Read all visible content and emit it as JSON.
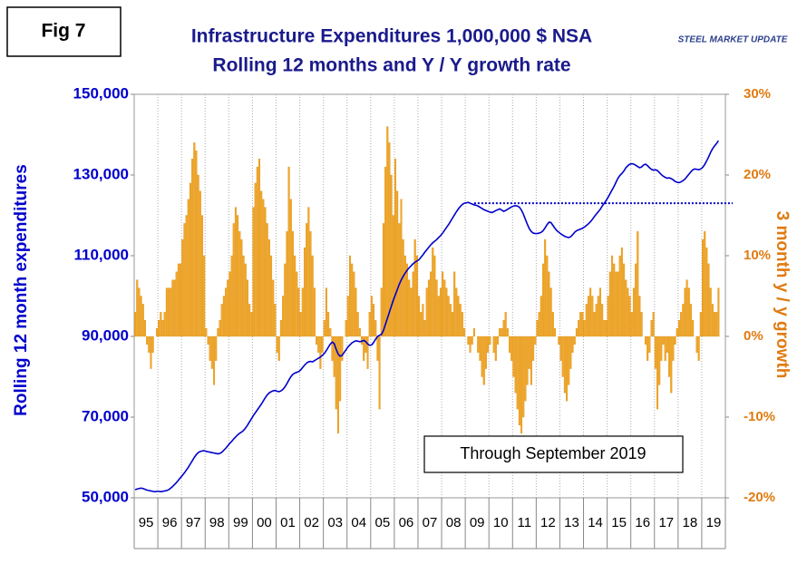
{
  "chart_data": {
    "type": "combo",
    "figure_label": "Fig 7",
    "title": "Infrastructure Expenditures 1,000,000 $ NSA",
    "subtitle": "Rolling 12 months and Y / Y growth rate",
    "logo": "STEEL MARKET UPDATE",
    "annotation": "Through September 2019",
    "y_label": "Rolling 12 month expenditures",
    "y2_label": "3 month y / y growth",
    "ylim": [
      50000,
      150000
    ],
    "yticks": [
      {
        "value": 50000,
        "label": "50,000"
      },
      {
        "value": 70000,
        "label": "70,000"
      },
      {
        "value": 90000,
        "label": "90,000"
      },
      {
        "value": 110000,
        "label": "110,000"
      },
      {
        "value": 130000,
        "label": "130,000"
      },
      {
        "value": 150000,
        "label": "150,000"
      }
    ],
    "y2lim": [
      -20,
      30
    ],
    "y2ticks": [
      {
        "value": -20,
        "label": "-20%"
      },
      {
        "value": -10,
        "label": "-10%"
      },
      {
        "value": 0,
        "label": "0%"
      },
      {
        "value": 10,
        "label": "10%"
      },
      {
        "value": 20,
        "label": "20%"
      },
      {
        "value": 30,
        "label": "30%"
      }
    ],
    "reference_line": {
      "value": 123000,
      "from_index": 172,
      "color": "#0000cc"
    },
    "categories": [
      null,
      null,
      null,
      null,
      null,
      "95",
      null,
      null,
      null,
      null,
      null,
      null,
      null,
      null,
      null,
      null,
      null,
      "96",
      null,
      null,
      null,
      null,
      null,
      null,
      null,
      null,
      null,
      null,
      null,
      "97",
      null,
      null,
      null,
      null,
      null,
      null,
      null,
      null,
      null,
      null,
      null,
      "98",
      null,
      null,
      null,
      null,
      null,
      null,
      null,
      null,
      null,
      null,
      null,
      "99",
      null,
      null,
      null,
      null,
      null,
      null,
      null,
      null,
      null,
      null,
      null,
      "00",
      null,
      null,
      null,
      null,
      null,
      null,
      null,
      null,
      null,
      null,
      null,
      "01",
      null,
      null,
      null,
      null,
      null,
      null,
      null,
      null,
      null,
      null,
      null,
      "02",
      null,
      null,
      null,
      null,
      null,
      null,
      null,
      null,
      null,
      null,
      null,
      "03",
      null,
      null,
      null,
      null,
      null,
      null,
      null,
      null,
      null,
      null,
      null,
      "04",
      null,
      null,
      null,
      null,
      null,
      null,
      null,
      null,
      null,
      null,
      null,
      "05",
      null,
      null,
      null,
      null,
      null,
      null,
      null,
      null,
      null,
      null,
      null,
      "06",
      null,
      null,
      null,
      null,
      null,
      null,
      null,
      null,
      null,
      null,
      null,
      "07",
      null,
      null,
      null,
      null,
      null,
      null,
      null,
      null,
      null,
      null,
      null,
      "08",
      null,
      null,
      null,
      null,
      null,
      null,
      null,
      null,
      null,
      null,
      null,
      "09",
      null,
      null,
      null,
      null,
      null,
      null,
      null,
      null,
      null,
      null,
      null,
      "10",
      null,
      null,
      null,
      null,
      null,
      null,
      null,
      null,
      null,
      null,
      null,
      "11",
      null,
      null,
      null,
      null,
      null,
      null,
      null,
      null,
      null,
      null,
      null,
      "12",
      null,
      null,
      null,
      null,
      null,
      null,
      null,
      null,
      null,
      null,
      null,
      "13",
      null,
      null,
      null,
      null,
      null,
      null,
      null,
      null,
      null,
      null,
      null,
      "14",
      null,
      null,
      null,
      null,
      null,
      null,
      null,
      null,
      null,
      null,
      null,
      "15",
      null,
      null,
      null,
      null,
      null,
      null,
      null,
      null,
      null,
      null,
      null,
      "16",
      null,
      null,
      null,
      null,
      null,
      null,
      null,
      null,
      null,
      null,
      null,
      "17",
      null,
      null,
      null,
      null,
      null,
      null,
      null,
      null,
      null,
      null,
      null,
      "18",
      null,
      null,
      null,
      null,
      null,
      null,
      null,
      null,
      null,
      null,
      null,
      "19",
      null,
      null,
      null
    ],
    "series": [
      {
        "type": "bar",
        "axis": "y2",
        "color": "#f5a623",
        "values": [
          3,
          7,
          6,
          5,
          4,
          2,
          -1,
          -2,
          -4,
          -2,
          0,
          1,
          2,
          3,
          2,
          3,
          6,
          6,
          6,
          7,
          7,
          8,
          9,
          9,
          12,
          14,
          15,
          17,
          19,
          22,
          24,
          23,
          20,
          18,
          15,
          10,
          1,
          -1,
          -3,
          -4,
          -6,
          -3,
          1,
          2,
          4,
          5,
          6,
          7,
          8,
          10,
          14,
          16,
          15,
          13,
          12,
          10,
          9,
          7,
          4,
          3,
          16,
          19,
          21,
          22,
          18,
          17,
          16,
          14,
          12,
          10,
          7,
          4,
          -2,
          -3,
          2,
          5,
          9,
          13,
          21,
          17,
          13,
          10,
          8,
          6,
          3,
          6,
          11,
          14,
          16,
          13,
          10,
          6,
          -1,
          -2,
          -4,
          -2,
          2,
          6,
          3,
          1,
          -3,
          -5,
          -9,
          -12,
          -8,
          -3,
          0,
          2,
          5,
          10,
          9,
          8,
          6,
          3,
          1,
          -1,
          -3,
          -2,
          -4,
          3,
          5,
          4,
          2,
          -3,
          -9,
          6,
          14,
          21,
          26,
          24,
          20,
          15,
          22,
          18,
          14,
          17,
          12,
          10,
          9,
          7,
          6,
          8,
          12,
          10,
          5,
          3,
          4,
          2,
          6,
          7,
          8,
          11,
          10,
          7,
          5,
          6,
          8,
          7,
          6,
          5,
          4,
          3,
          8,
          6,
          5,
          4,
          3,
          1,
          0,
          -1,
          -2,
          -1,
          1,
          0,
          -2,
          -3,
          -5,
          -6,
          -4,
          -2,
          -1,
          0,
          -2,
          -3,
          -1,
          1,
          1,
          2,
          3,
          1,
          -2,
          -3,
          -5,
          -7,
          -9,
          -11,
          -12,
          -10,
          -8,
          -6,
          -4,
          -6,
          -3,
          -1,
          2,
          3,
          5,
          9,
          12,
          10,
          8,
          6,
          3,
          1,
          0,
          -1,
          -3,
          -5,
          -7,
          -8,
          -6,
          -4,
          -2,
          -1,
          1,
          2,
          3,
          3,
          2,
          4,
          5,
          6,
          5,
          3,
          4,
          5,
          6,
          4,
          2,
          2,
          5,
          8,
          10,
          9,
          8,
          8,
          10,
          11,
          9,
          7,
          6,
          5,
          3,
          6,
          9,
          13,
          5,
          3,
          0,
          -1,
          -3,
          -2,
          2,
          3,
          -4,
          -9,
          -6,
          -3,
          -1,
          -3,
          -2,
          -5,
          -7,
          -3,
          -1,
          1,
          2,
          3,
          4,
          6,
          7,
          6,
          4,
          2,
          0,
          -2,
          -3,
          3,
          12,
          13,
          11,
          9,
          6,
          4,
          3,
          3,
          6
        ]
      },
      {
        "type": "line",
        "axis": "y",
        "color": "#0000cc",
        "values": [
          52000,
          52200,
          52300,
          52400,
          52300,
          52100,
          51900,
          51800,
          51700,
          51600,
          51500,
          51600,
          51600,
          51500,
          51600,
          51700,
          51800,
          52000,
          52400,
          52800,
          53300,
          53800,
          54400,
          55000,
          55600,
          56200,
          56900,
          57600,
          58400,
          59200,
          60000,
          60700,
          61200,
          61500,
          61600,
          61700,
          61500,
          61400,
          61300,
          61200,
          61100,
          61000,
          60900,
          61000,
          61300,
          61800,
          62300,
          62900,
          63500,
          64000,
          64600,
          65100,
          65600,
          66000,
          66300,
          66700,
          67300,
          68000,
          68800,
          69600,
          70400,
          71100,
          71800,
          72500,
          73200,
          74000,
          74800,
          75500,
          76000,
          76300,
          76500,
          76600,
          76400,
          76300,
          76500,
          76900,
          77500,
          78300,
          79200,
          80000,
          80600,
          80900,
          81100,
          81300,
          81700,
          82300,
          82900,
          83400,
          83700,
          83800,
          83700,
          84000,
          84300,
          84600,
          84900,
          85300,
          85800,
          86500,
          87300,
          88100,
          88600,
          88200,
          86800,
          85600,
          85100,
          85300,
          86000,
          86700,
          87400,
          87900,
          88400,
          88700,
          88900,
          88800,
          88700,
          88800,
          89000,
          88700,
          88100,
          87800,
          87900,
          88500,
          89300,
          90000,
          90300,
          90500,
          91500,
          93000,
          94500,
          96000,
          97500,
          99000,
          100300,
          101600,
          102900,
          104000,
          104900,
          105700,
          106400,
          107000,
          107500,
          108000,
          108400,
          108700,
          109000,
          109600,
          110200,
          110900,
          111500,
          112100,
          112700,
          113200,
          113600,
          114000,
          114500,
          115000,
          115600,
          116300,
          117000,
          117700,
          118500,
          119300,
          120100,
          120900,
          121600,
          122200,
          122700,
          123000,
          123100,
          123200,
          123000,
          122800,
          122600,
          122500,
          122300,
          122000,
          121700,
          121400,
          121200,
          121000,
          120800,
          120700,
          120900,
          121200,
          121400,
          121600,
          121300,
          121000,
          121200,
          121500,
          121800,
          122100,
          122300,
          122400,
          122300,
          122000,
          121300,
          120300,
          119000,
          117800,
          116700,
          116000,
          115600,
          115500,
          115500,
          115600,
          115800,
          116200,
          116900,
          117700,
          118300,
          118200,
          117500,
          116800,
          116200,
          115800,
          115400,
          115100,
          114800,
          114600,
          114500,
          114700,
          115200,
          115800,
          116200,
          116400,
          116600,
          116800,
          117100,
          117500,
          117900,
          118400,
          119000,
          119700,
          120300,
          120900,
          121500,
          122300,
          123000,
          123700,
          124500,
          125400,
          126300,
          127200,
          128200,
          129200,
          129900,
          130400,
          131000,
          131800,
          132300,
          132700,
          132800,
          132700,
          132400,
          132100,
          131800,
          132000,
          132500,
          132700,
          132300,
          131800,
          131400,
          131200,
          131300,
          131100,
          130600,
          130100,
          129700,
          129400,
          129200,
          129300,
          129100,
          128800,
          128400,
          128200,
          128100,
          128300,
          128600,
          129000,
          129600,
          130200,
          130800,
          131300,
          131500,
          131400,
          131300,
          131500,
          131900,
          132600,
          133500,
          134500,
          135600,
          136500,
          137200,
          137800,
          138500
        ]
      }
    ]
  }
}
